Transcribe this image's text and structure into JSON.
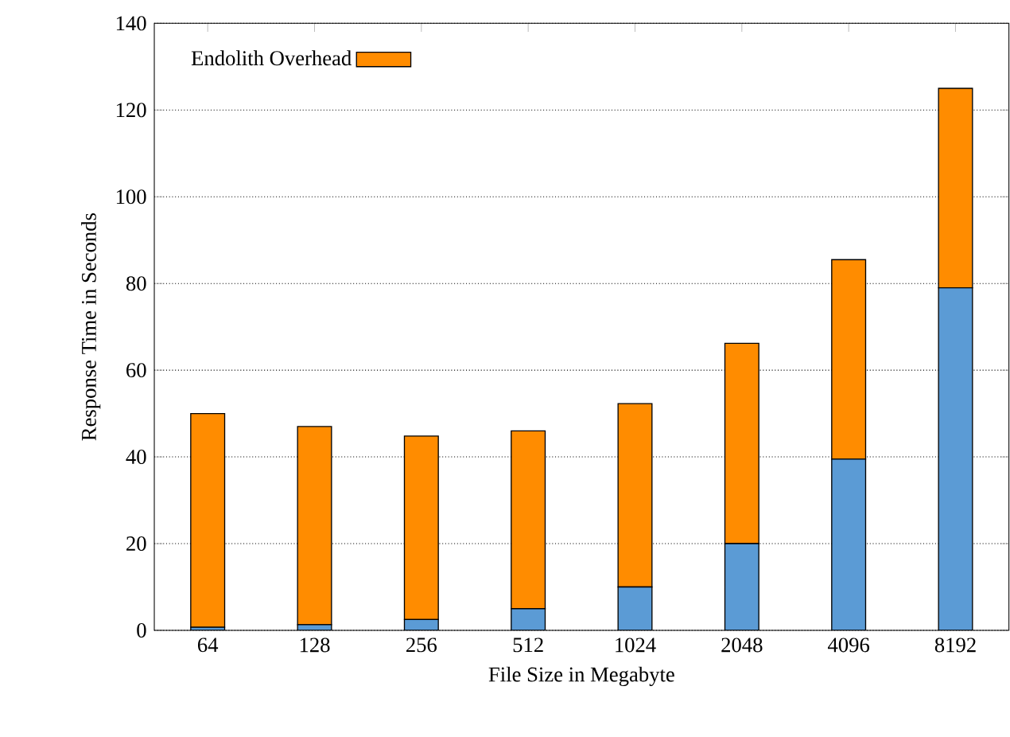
{
  "chart_data": {
    "type": "bar",
    "stacked": true,
    "xlabel": "File Size in Megabyte",
    "ylabel": "Response Time in Seconds",
    "categories": [
      "64",
      "128",
      "256",
      "512",
      "1024",
      "2048",
      "4096",
      "8192"
    ],
    "series": [
      {
        "color": "#5b9bd5",
        "values": [
          0.7,
          1.3,
          2.5,
          5,
          10,
          20,
          39.5,
          79
        ]
      },
      {
        "name": "Endolith Overhead",
        "color": "#ff8c00",
        "values": [
          49.3,
          45.7,
          42.3,
          41,
          42.3,
          46.2,
          46,
          46
        ]
      }
    ],
    "ylim": [
      0,
      140
    ],
    "yticks": [
      0,
      20,
      40,
      60,
      80,
      100,
      120,
      140
    ],
    "grid": "y",
    "legend": "top left"
  }
}
